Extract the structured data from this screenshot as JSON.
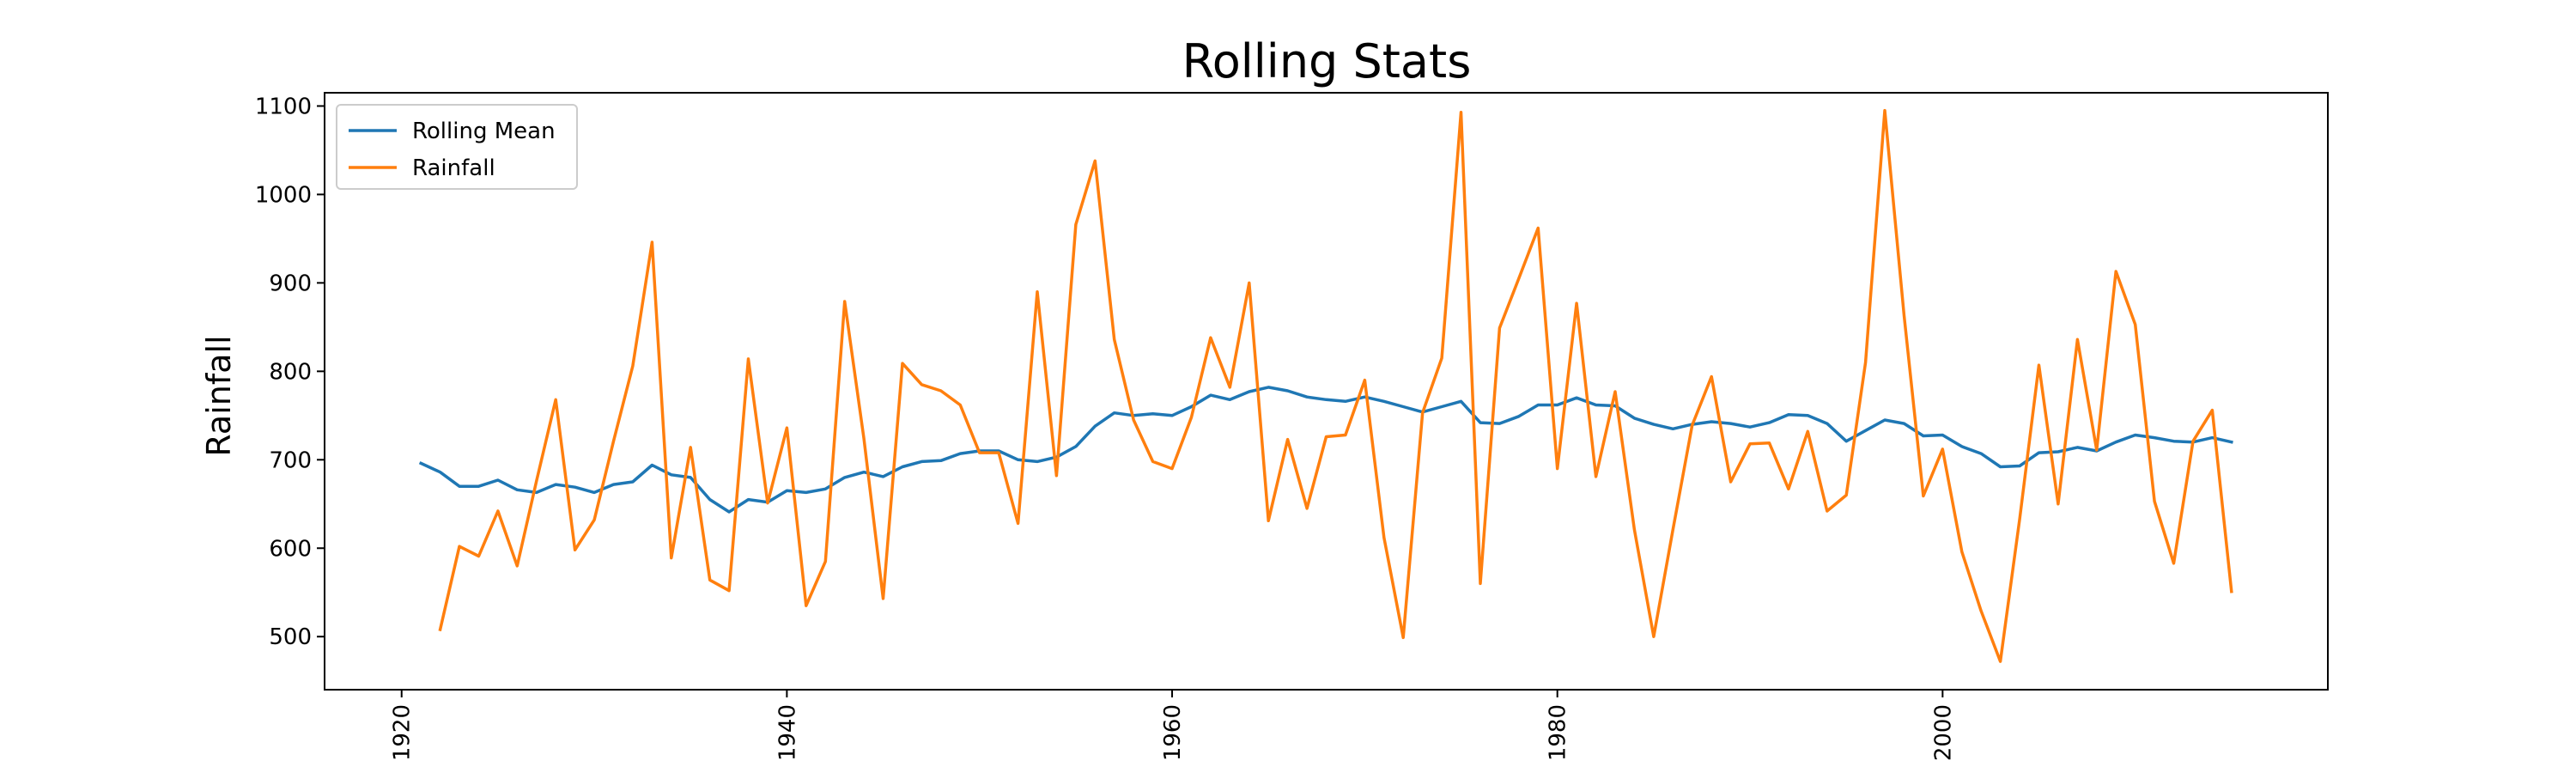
{
  "chart_data": {
    "type": "line",
    "title": "Rolling Stats",
    "xlabel": "",
    "ylabel": "Rainfall",
    "xlim": [
      1916,
      2020
    ],
    "ylim": [
      440,
      1115
    ],
    "x_ticks": [
      1920,
      1940,
      1960,
      1980,
      2000
    ],
    "y_ticks": [
      500,
      600,
      700,
      800,
      900,
      1000,
      1100
    ],
    "x_tick_rotation": 90,
    "grid": false,
    "legend_position": "top-left",
    "x": [
      1921,
      1922,
      1923,
      1924,
      1925,
      1926,
      1927,
      1928,
      1929,
      1930,
      1931,
      1932,
      1933,
      1934,
      1935,
      1936,
      1937,
      1938,
      1939,
      1940,
      1941,
      1942,
      1943,
      1944,
      1945,
      1946,
      1947,
      1948,
      1949,
      1950,
      1951,
      1952,
      1953,
      1954,
      1955,
      1956,
      1957,
      1958,
      1959,
      1960,
      1961,
      1962,
      1963,
      1964,
      1965,
      1966,
      1967,
      1968,
      1969,
      1970,
      1971,
      1972,
      1973,
      1974,
      1975,
      1976,
      1977,
      1978,
      1979,
      1980,
      1981,
      1982,
      1983,
      1984,
      1985,
      1986,
      1987,
      1988,
      1989,
      1990,
      1991,
      1992,
      1993,
      1994,
      1995,
      1996,
      1997,
      1998,
      1999,
      2000,
      2001,
      2002,
      2003,
      2004,
      2005,
      2006,
      2007,
      2008,
      2009,
      2010,
      2011,
      2012,
      2013,
      2014,
      2015
    ],
    "series": [
      {
        "name": "Rolling Mean",
        "color": "#1f77b4",
        "values": [
          696,
          686,
          670,
          670,
          677,
          666,
          663,
          672,
          669,
          663,
          672,
          675,
          694,
          683,
          680,
          655,
          641,
          655,
          652,
          665,
          663,
          667,
          680,
          686,
          681,
          692,
          698,
          699,
          707,
          710,
          710,
          700,
          698,
          703,
          715,
          738,
          753,
          750,
          752,
          750,
          760,
          773,
          768,
          777,
          782,
          778,
          771,
          768,
          766,
          771,
          766,
          760,
          754,
          760,
          766,
          742,
          741,
          749,
          762,
          762,
          770,
          762,
          761,
          747,
          740,
          735,
          740,
          743,
          741,
          737,
          742,
          751,
          750,
          741,
          721,
          733,
          745,
          741,
          727,
          728,
          715,
          707,
          692,
          693,
          708,
          709,
          714,
          710,
          720,
          728,
          725,
          721,
          720,
          725,
          720
        ]
      },
      {
        "name": "Rainfall",
        "color": "#ff7f0e",
        "values": [
          null,
          508,
          602,
          591,
          642,
          580,
          676,
          768,
          598,
          632,
          721,
          806,
          946,
          589,
          714,
          564,
          552,
          814,
          651,
          736,
          535,
          585,
          879,
          724,
          543,
          809,
          785,
          778,
          762,
          708,
          708,
          628,
          890,
          682,
          966,
          1038,
          836,
          745,
          698,
          690,
          748,
          838,
          782,
          900,
          631,
          723,
          645,
          726,
          728,
          790,
          612,
          499,
          753,
          815,
          1093,
          560,
          849,
          905,
          962,
          690,
          877,
          681,
          777,
          621,
          500,
          621,
          739,
          794,
          675,
          718,
          719,
          667,
          732,
          642,
          660,
          810,
          1095,
          863,
          659,
          712,
          596,
          529,
          472,
          633,
          807,
          650,
          836,
          711,
          913,
          853,
          653,
          583,
          721,
          756,
          551
        ]
      }
    ]
  }
}
